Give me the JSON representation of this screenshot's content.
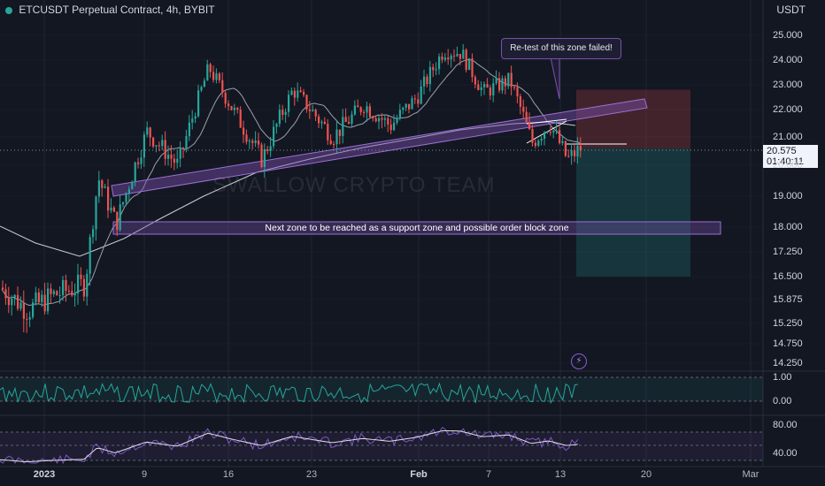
{
  "header": {
    "title": "ETCUSDT Perpetual Contract, 4h, BYBIT",
    "currency": "USDT"
  },
  "price_tag": {
    "price": "20.575",
    "countdown": "01:40:11"
  },
  "annotations": {
    "callout": "Re-test of this zone failed!",
    "zone_label": "Next zone to be reached as a support zone and possible order block zone",
    "watermark": "SWALLOW CRYPTO TEAM"
  },
  "colors": {
    "up": "#26a69a",
    "down": "#ef5350",
    "background": "#131722",
    "zone": "#7b4fae",
    "ma": "#d1d4dc",
    "rsi": "#7e57c2"
  },
  "chart_data": [
    {
      "type": "candlestick",
      "title": "ETCUSDT Perpetual Contract, 4h, BYBIT",
      "ylabel": "USDT",
      "ylim": [
        14.25,
        25.0
      ],
      "y_ticks": [
        "25.000",
        "24.000",
        "23.000",
        "22.000",
        "21.000",
        "20.000",
        "19.000",
        "18.000",
        "17.250",
        "16.500",
        "15.875",
        "15.250",
        "14.750",
        "14.250"
      ],
      "x_ticks": [
        "2023",
        "9",
        "16",
        "23",
        "Feb",
        "7",
        "13",
        "20",
        "Mar"
      ],
      "last_price": 20.575,
      "approx_closes": [
        {
          "x": "2023",
          "y": 15.9
        },
        {
          "x": "9",
          "y": 19.9
        },
        {
          "x": "16",
          "y": 20.0
        },
        {
          "x": "23",
          "y": 21.0
        },
        {
          "x": "Feb",
          "y": 22.0
        },
        {
          "x": "7",
          "y": 22.5
        },
        {
          "x": "13",
          "y": 20.3
        }
      ],
      "zones": [
        {
          "label": "",
          "from": 19.3,
          "to": 22.0,
          "kind": "rising channel"
        },
        {
          "label": "Next zone to be reached as a support zone and possible order block zone",
          "from": 17.85,
          "to": 18.15
        }
      ],
      "position": {
        "entry": 20.6,
        "stop": 22.8,
        "target": 16.5
      }
    },
    {
      "type": "line",
      "name": "oscillator",
      "y_ticks": [
        "1.00",
        "0.00"
      ],
      "ylim": [
        0.0,
        1.0
      ]
    },
    {
      "type": "line",
      "name": "RSI",
      "y_ticks": [
        "80.00",
        "40.00"
      ],
      "ylim": [
        40,
        80
      ]
    }
  ]
}
